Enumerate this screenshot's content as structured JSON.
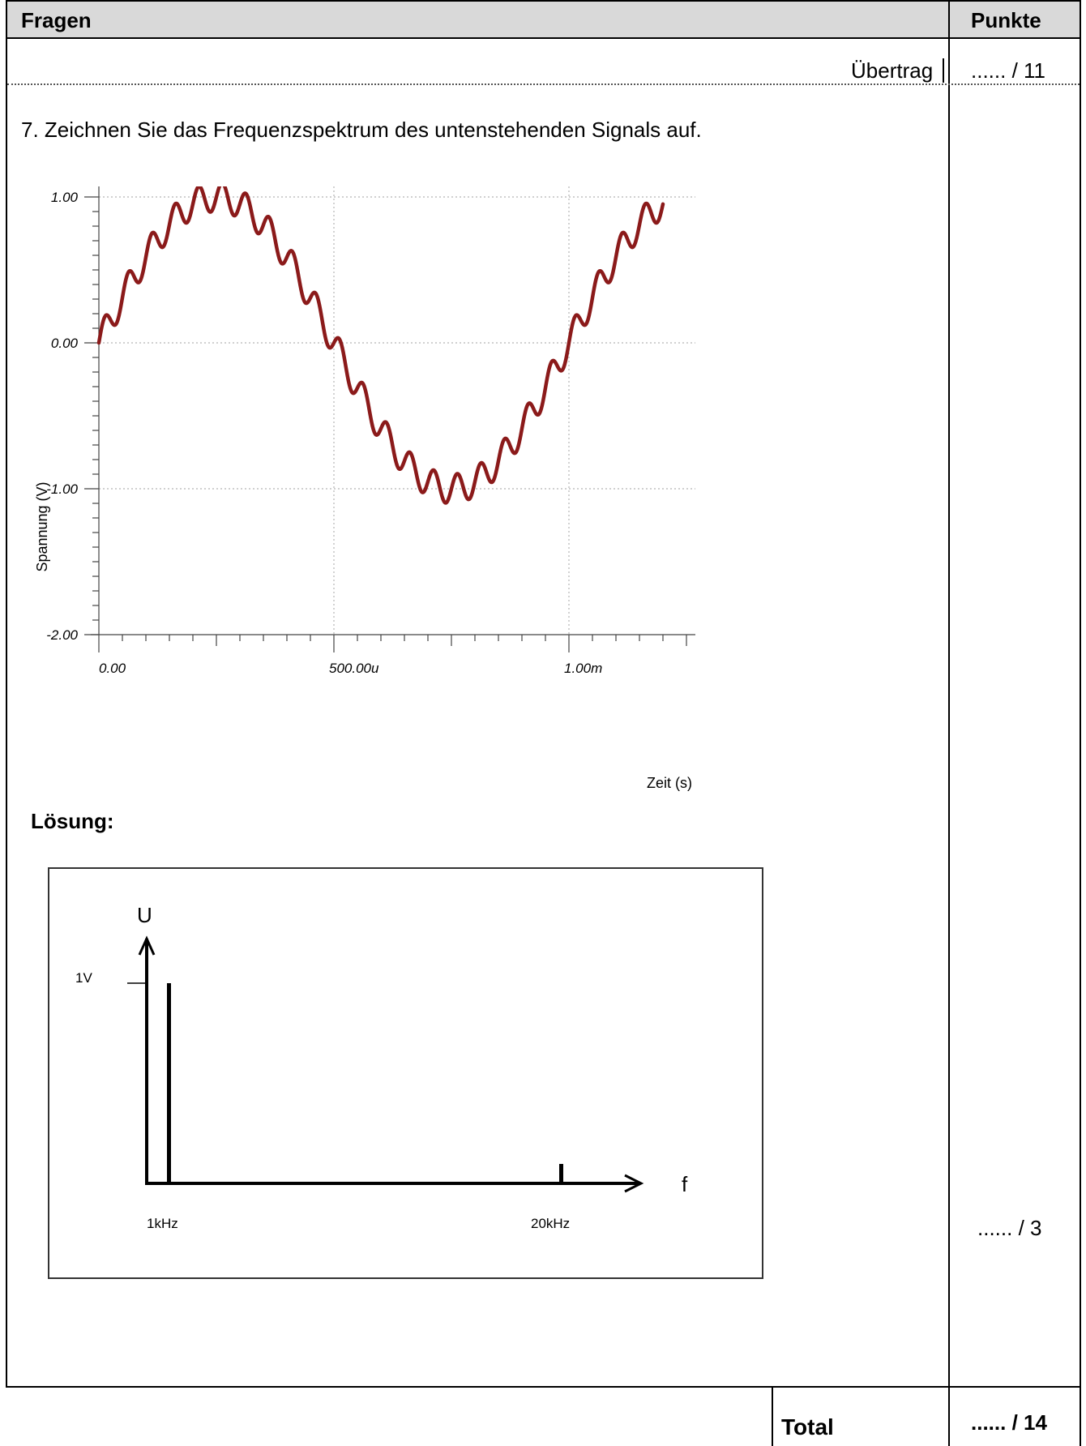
{
  "header": {
    "left": "Fragen",
    "right": "Punkte"
  },
  "carry": {
    "label": "Übertrag",
    "points": "...... / 11"
  },
  "question": {
    "text": "7.  Zeichnen Sie das Frequenzspektrum des untenstehenden Signals auf.",
    "points": "...... / 3"
  },
  "signal_chart": {
    "ylabel": "Spannung (V)",
    "xlabel": "Zeit (s)",
    "y_ticks": [
      "1.00",
      "0.00",
      "-1.00",
      "-2.00"
    ],
    "x_ticks": [
      "0.00",
      "500.00u",
      "1.00m"
    ],
    "line_color": "#8b1a1a",
    "grid": true
  },
  "chart_data": {
    "type": "line",
    "xlabel": "Zeit (s)",
    "ylabel": "Spannung (V)",
    "xlim": [
      0,
      0.00125
    ],
    "ylim": [
      -2.0,
      1.2
    ],
    "x_tick_labels": [
      "0.00",
      "500.00u",
      "1.00m"
    ],
    "y_tick_labels": [
      "1.00",
      "0.00",
      "-1.00",
      "-2.00"
    ],
    "series": [
      {
        "components": [
          {
            "frequency_hz": 1000,
            "amplitude_v": 1.0
          },
          {
            "frequency_hz": 20000,
            "amplitude_v": 0.1
          }
        ],
        "x_range": [
          0,
          0.0012
        ]
      }
    ],
    "grid": true
  },
  "solution": {
    "label": "Lösung:",
    "u_label": "U",
    "f_label": "f",
    "one_v_label": "1V",
    "f1_label": "1kHz",
    "f2_label": "20kHz",
    "spectrum": [
      {
        "frequency": "1kHz",
        "amplitude_v": 1.0
      },
      {
        "frequency": "20kHz",
        "amplitude_v": 0.1
      }
    ]
  },
  "total": {
    "label": "Total",
    "points": "...... / 14"
  }
}
